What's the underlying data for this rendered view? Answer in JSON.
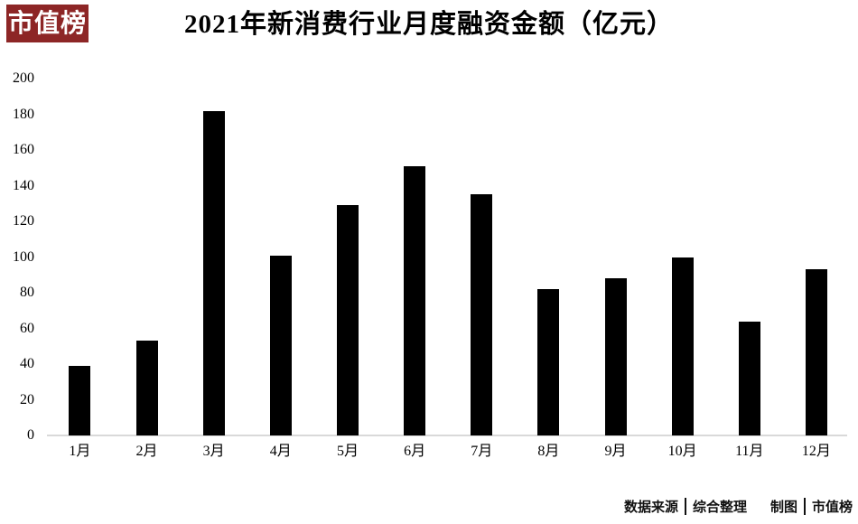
{
  "logo": {
    "text": "市值榜",
    "bg_color": "#8d2626",
    "text_color": "#ffffff"
  },
  "chart_data": {
    "type": "bar",
    "title": "2021年新消费行业月度融资金额（亿元）",
    "categories": [
      "1月",
      "2月",
      "3月",
      "4月",
      "5月",
      "6月",
      "7月",
      "8月",
      "9月",
      "10月",
      "11月",
      "12月"
    ],
    "values": [
      39,
      53,
      182,
      101,
      129,
      151,
      135,
      82,
      88,
      100,
      64,
      93
    ],
    "xlabel": "",
    "ylabel": "",
    "ylim": [
      0,
      200
    ],
    "ytick_step": 20,
    "yticks": [
      0,
      20,
      40,
      60,
      80,
      100,
      120,
      140,
      160,
      180,
      200
    ],
    "bar_color": "#000000",
    "axis_line_color": "#d9d9d9",
    "grid": false,
    "legend_position": "none"
  },
  "footer": {
    "source_label": "数据来源",
    "source_value": "综合整理",
    "credit_label": "制图",
    "credit_value": "市值榜"
  }
}
